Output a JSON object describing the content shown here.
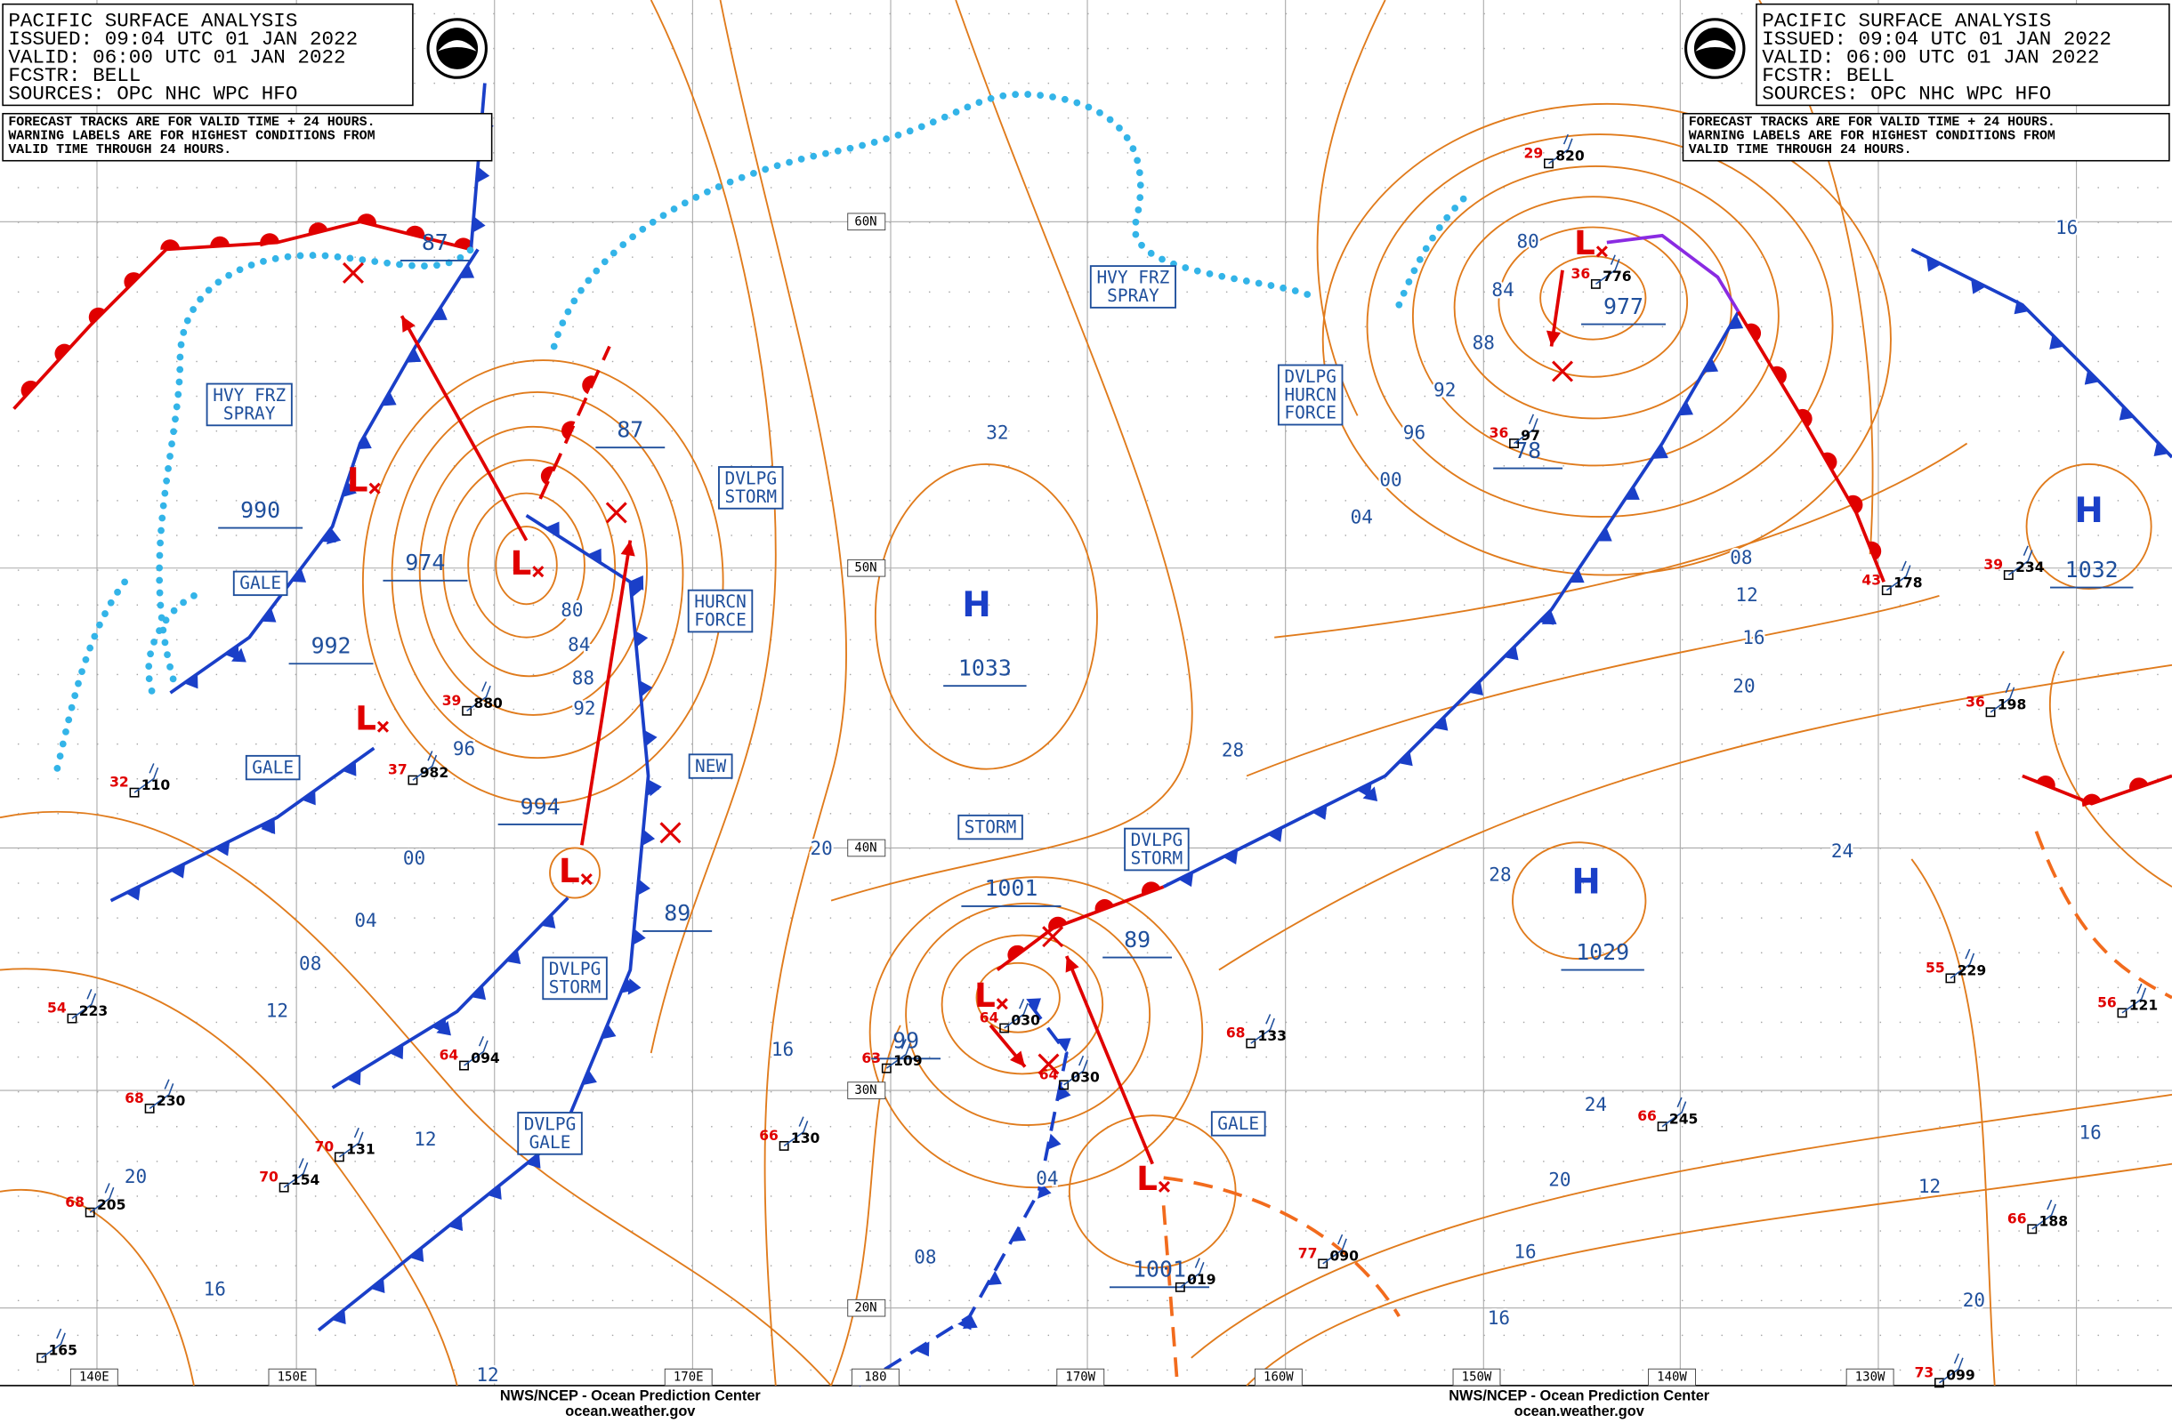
{
  "header_left": {
    "lines": [
      "PACIFIC SURFACE ANALYSIS",
      "ISSUED: 09:04 UTC 01 JAN 2022",
      "VALID: 06:00 UTC 01 JAN 2022",
      "FCSTR: BELL",
      "SOURCES: OPC NHC WPC HFO"
    ]
  },
  "note_left": {
    "lines": [
      "FORECAST TRACKS ARE FOR VALID TIME + 24 HOURS.",
      "WARNING LABELS ARE FOR HIGHEST CONDITIONS FROM",
      "VALID TIME THROUGH 24 HOURS."
    ]
  },
  "header_right": {
    "lines": [
      "PACIFIC SURFACE ANALYSIS",
      "ISSUED: 09:04 UTC 01 JAN 2022",
      "VALID: 06:00 UTC 01 JAN 2022",
      "FCSTR: BELL",
      "SOURCES: OPC NHC WPC HFO"
    ]
  },
  "note_right": {
    "lines": [
      "FORECAST TRACKS ARE FOR VALID TIME + 24 HOURS.",
      "WARNING LABELS ARE FOR HIGHEST CONDITIONS FROM",
      "VALID TIME THROUGH 24 HOURS."
    ]
  },
  "footers": [
    {
      "lines": [
        "NWS/NCEP - Ocean Prediction Center",
        "ocean.weather.gov"
      ]
    },
    {
      "lines": [
        "NWS/NCEP - Ocean Prediction Center",
        "ocean.weather.gov"
      ]
    }
  ],
  "latitudes": [
    "60N",
    "50N",
    "40N",
    "30N",
    "20N"
  ],
  "longitudes": [
    "140E",
    "150E",
    "170E",
    "180",
    "170W",
    "160W",
    "150W",
    "140W",
    "130W"
  ],
  "highs": [
    {
      "symbol": "H",
      "pressure": "1033"
    },
    {
      "symbol": "H",
      "pressure": "1029"
    },
    {
      "symbol": "H",
      "pressure": "1032"
    }
  ],
  "lows": [
    "L",
    "L",
    "L",
    "L",
    "L",
    "L",
    "L"
  ],
  "pressure_labels": [
    "87",
    "87",
    "990",
    "974",
    "992",
    "994",
    "89",
    "1001",
    "89",
    "99",
    "1001",
    "977",
    "78"
  ],
  "warnings": [
    {
      "lines": [
        "HVY FRZ",
        "SPRAY"
      ]
    },
    {
      "lines": [
        "GALE"
      ]
    },
    {
      "lines": [
        "GALE"
      ]
    },
    {
      "lines": [
        "DVLPG",
        "STORM"
      ]
    },
    {
      "lines": [
        "HURCN",
        "FORCE"
      ]
    },
    {
      "lines": [
        "NEW"
      ]
    },
    {
      "lines": [
        "DVLPG",
        "STORM"
      ]
    },
    {
      "lines": [
        "DVLPG",
        "GALE"
      ]
    },
    {
      "lines": [
        "STORM"
      ]
    },
    {
      "lines": [
        "DVLPG",
        "STORM"
      ]
    },
    {
      "lines": [
        "GALE"
      ]
    },
    {
      "lines": [
        "HVY FRZ",
        "SPRAY"
      ]
    },
    {
      "lines": [
        "DVLPG",
        "HURCN",
        "FORCE"
      ]
    }
  ],
  "isobar_labels": [
    "80",
    "84",
    "88",
    "92",
    "96",
    "00",
    "04",
    "08",
    "12",
    "12",
    "20",
    "16",
    "32",
    "28",
    "20",
    "16",
    "04",
    "08",
    "80",
    "84",
    "88",
    "92",
    "96",
    "00",
    "04",
    "08",
    "12",
    "16",
    "20",
    "24",
    "28",
    "24",
    "20",
    "16",
    "12",
    "20",
    "16",
    "16",
    "16",
    "12"
  ],
  "stations": [
    {
      "pressure": "880",
      "temperature": "39"
    },
    {
      "pressure": "982",
      "temperature": "37"
    },
    {
      "pressure": "110",
      "temperature": "32"
    },
    {
      "pressure": "094",
      "temperature": "64"
    },
    {
      "pressure": "130",
      "temperature": "66"
    },
    {
      "pressure": "131",
      "temperature": "70"
    },
    {
      "pressure": "154",
      "temperature": "70"
    },
    {
      "pressure": "205",
      "temperature": "68"
    },
    {
      "pressure": "223",
      "temperature": "54"
    },
    {
      "pressure": "230",
      "temperature": "68"
    },
    {
      "pressure": "165"
    },
    {
      "pressure": "030",
      "temperature": "64"
    },
    {
      "pressure": "030",
      "temperature": "64"
    },
    {
      "pressure": "133",
      "temperature": "68"
    },
    {
      "pressure": "245",
      "temperature": "66"
    },
    {
      "pressure": "229",
      "temperature": "55"
    },
    {
      "pressure": "198",
      "temperature": "36"
    },
    {
      "pressure": "234",
      "temperature": "39"
    },
    {
      "pressure": "178",
      "temperature": "43"
    },
    {
      "pressure": "188",
      "temperature": "66"
    },
    {
      "pressure": "121",
      "temperature": "56"
    },
    {
      "pressure": "099",
      "temperature": "73"
    },
    {
      "pressure": "820",
      "temperature": "29"
    },
    {
      "pressure": "776",
      "temperature": "36"
    },
    {
      "pressure": "97",
      "temperature": "36"
    },
    {
      "pressure": "090",
      "temperature": "77"
    },
    {
      "pressure": "019"
    },
    {
      "pressure": "109",
      "temperature": "63"
    }
  ]
}
